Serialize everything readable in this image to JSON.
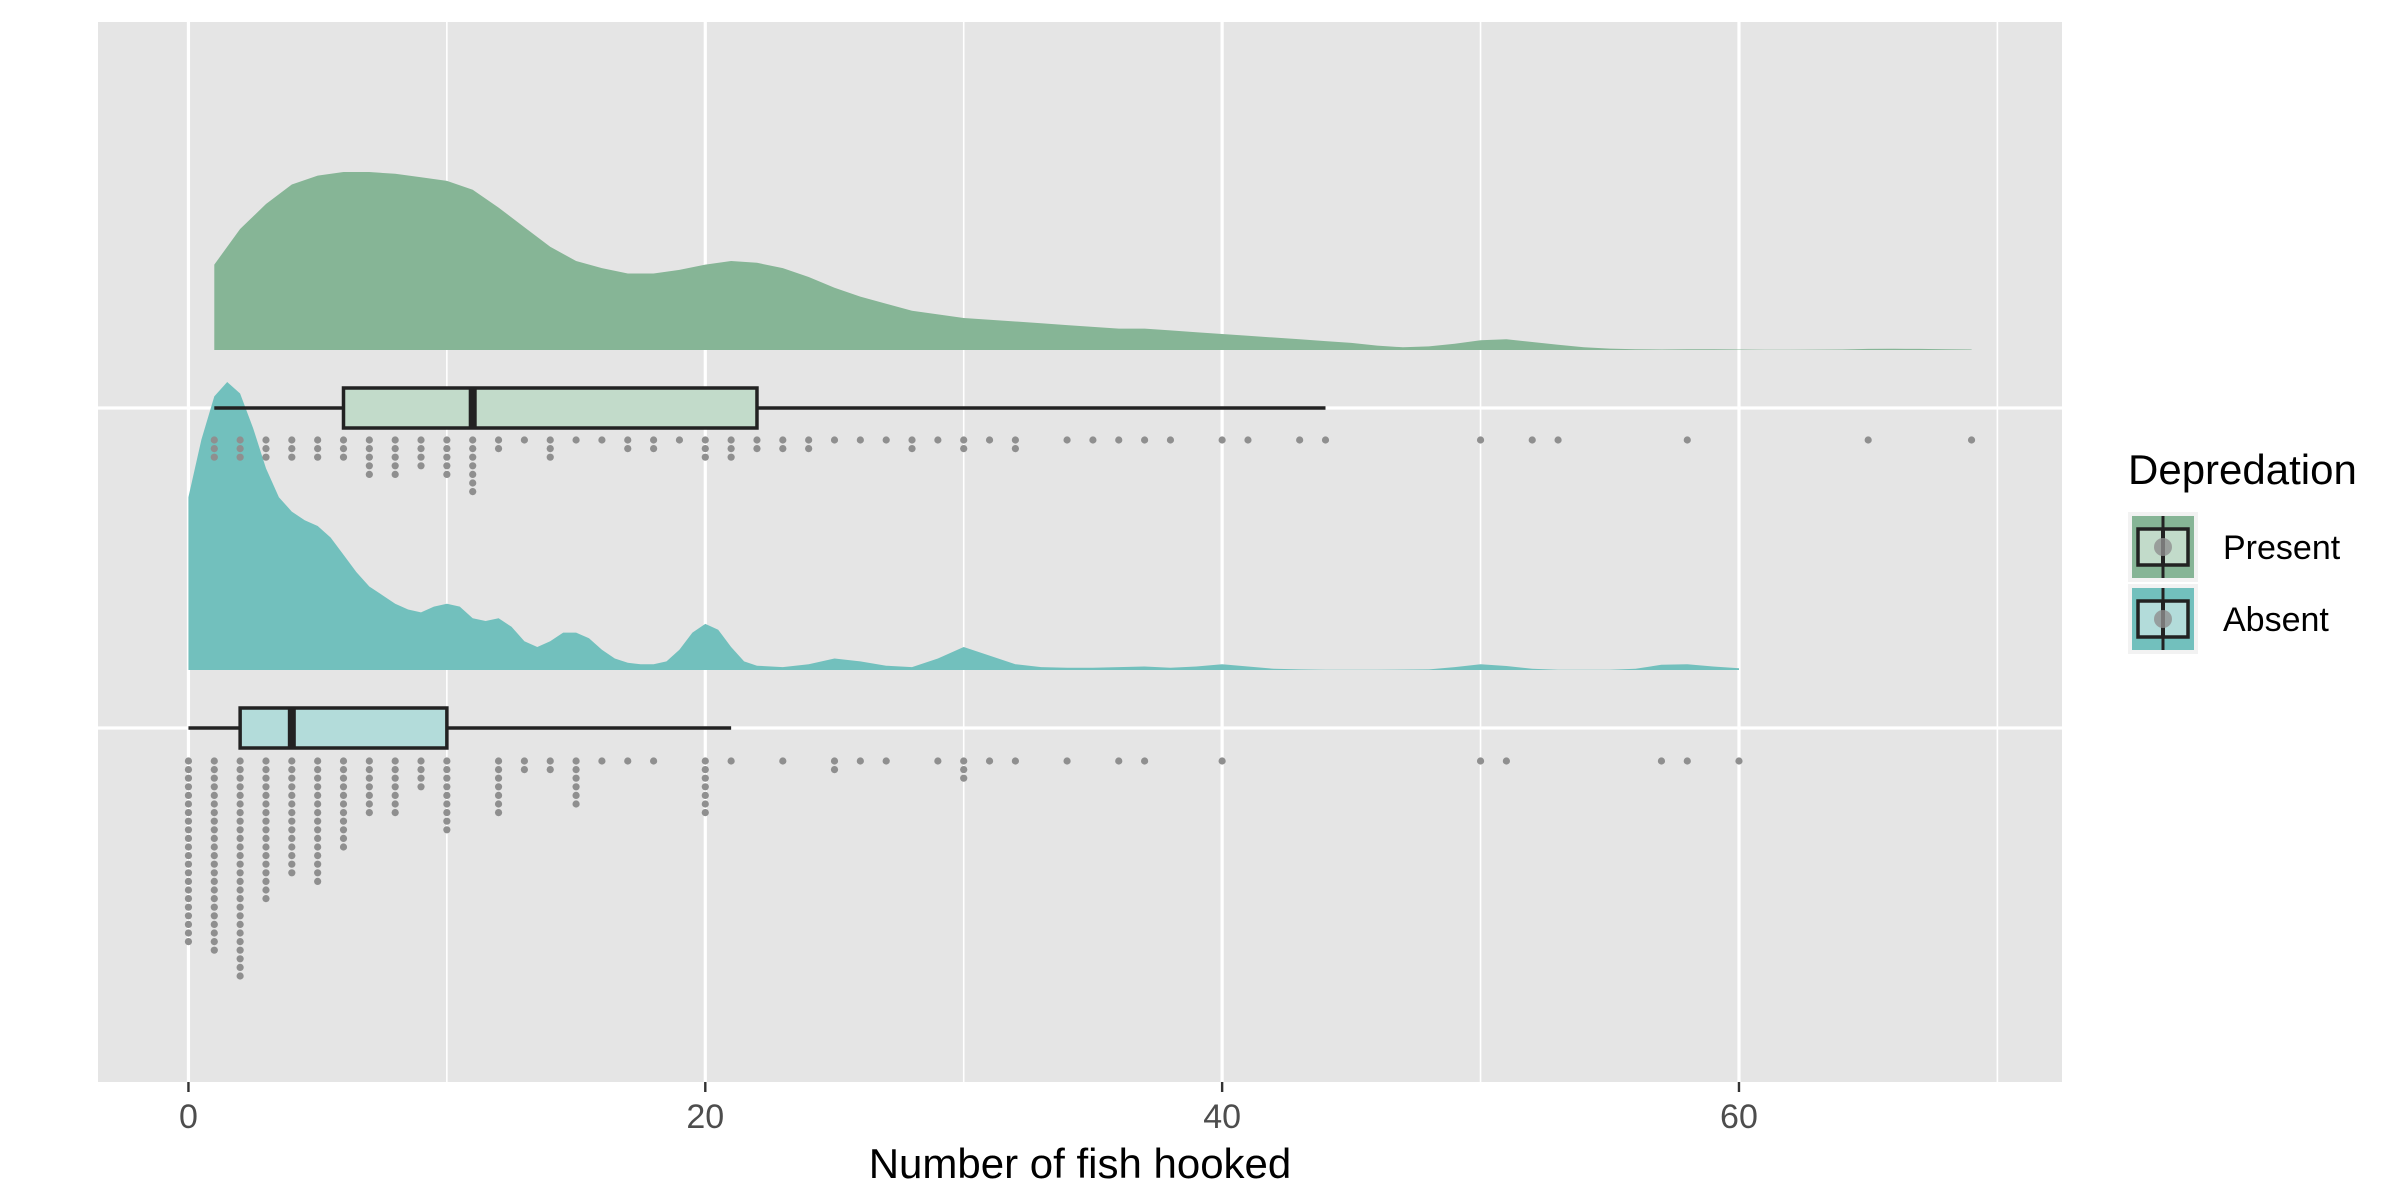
{
  "chart_data": {
    "type": "raincloud",
    "xlabel": "Number of fish hooked",
    "xlim": [
      -3.5,
      72.5
    ],
    "x_ticks": [
      0,
      20,
      40,
      60
    ],
    "x_minor": [
      10,
      30,
      50,
      70
    ],
    "grid": true,
    "legend": {
      "title": "Depredation",
      "position": "right"
    },
    "colors": {
      "panel": "#e5e5e5",
      "grid": "#ffffff",
      "dot": "#8f8f8f",
      "box_stroke": "#222222"
    },
    "series": [
      {
        "name": "Present",
        "color": "#86b596",
        "box_fill": "#c2dbca",
        "box": {
          "min": 1,
          "q1": 6,
          "median": 11,
          "q3": 22,
          "max": 44
        },
        "density": [
          [
            1,
            0.48
          ],
          [
            2,
            0.68
          ],
          [
            3,
            0.82
          ],
          [
            4,
            0.93
          ],
          [
            5,
            0.98
          ],
          [
            6,
            1.0
          ],
          [
            7,
            1.0
          ],
          [
            8,
            0.99
          ],
          [
            9,
            0.97
          ],
          [
            10,
            0.95
          ],
          [
            11,
            0.9
          ],
          [
            12,
            0.8
          ],
          [
            13,
            0.69
          ],
          [
            14,
            0.58
          ],
          [
            15,
            0.5
          ],
          [
            16,
            0.46
          ],
          [
            17,
            0.43
          ],
          [
            18,
            0.43
          ],
          [
            19,
            0.45
          ],
          [
            20,
            0.48
          ],
          [
            21,
            0.5
          ],
          [
            22,
            0.49
          ],
          [
            23,
            0.46
          ],
          [
            24,
            0.41
          ],
          [
            25,
            0.35
          ],
          [
            26,
            0.3
          ],
          [
            27,
            0.26
          ],
          [
            28,
            0.22
          ],
          [
            29,
            0.2
          ],
          [
            30,
            0.18
          ],
          [
            31,
            0.17
          ],
          [
            32,
            0.16
          ],
          [
            33,
            0.15
          ],
          [
            34,
            0.14
          ],
          [
            35,
            0.13
          ],
          [
            36,
            0.12
          ],
          [
            37,
            0.12
          ],
          [
            38,
            0.11
          ],
          [
            39,
            0.1
          ],
          [
            40,
            0.09
          ],
          [
            41,
            0.08
          ],
          [
            42,
            0.07
          ],
          [
            43,
            0.06
          ],
          [
            44,
            0.05
          ],
          [
            45,
            0.04
          ],
          [
            46,
            0.025
          ],
          [
            47,
            0.015
          ],
          [
            48,
            0.02
          ],
          [
            49,
            0.035
          ],
          [
            50,
            0.055
          ],
          [
            51,
            0.06
          ],
          [
            52,
            0.045
          ],
          [
            53,
            0.03
          ],
          [
            54,
            0.015
          ],
          [
            55,
            0.008
          ],
          [
            56,
            0.004
          ],
          [
            57,
            0.003
          ],
          [
            58,
            0.004
          ],
          [
            59,
            0.004
          ],
          [
            60,
            0.003
          ],
          [
            61,
            0.001
          ],
          [
            62,
            0.001
          ],
          [
            63,
            0.002
          ],
          [
            64,
            0.003
          ],
          [
            65,
            0.006
          ],
          [
            66,
            0.007
          ],
          [
            67,
            0.006
          ],
          [
            68,
            0.004
          ],
          [
            69,
            0.003
          ]
        ],
        "dots": [
          [
            1,
            3
          ],
          [
            2,
            3
          ],
          [
            3,
            3
          ],
          [
            4,
            3
          ],
          [
            5,
            3
          ],
          [
            6,
            3
          ],
          [
            7,
            5
          ],
          [
            8,
            5
          ],
          [
            9,
            4
          ],
          [
            10,
            5
          ],
          [
            11,
            7
          ],
          [
            12,
            2
          ],
          [
            13,
            1
          ],
          [
            14,
            3
          ],
          [
            15,
            1
          ],
          [
            16,
            1
          ],
          [
            17,
            2
          ],
          [
            18,
            2
          ],
          [
            19,
            1
          ],
          [
            20,
            3
          ],
          [
            21,
            3
          ],
          [
            22,
            2
          ],
          [
            23,
            2
          ],
          [
            24,
            2
          ],
          [
            25,
            1
          ],
          [
            26,
            1
          ],
          [
            27,
            1
          ],
          [
            28,
            2
          ],
          [
            29,
            1
          ],
          [
            30,
            2
          ],
          [
            31,
            1
          ],
          [
            32,
            2
          ],
          [
            34,
            1
          ],
          [
            35,
            1
          ],
          [
            36,
            1
          ],
          [
            37,
            1
          ],
          [
            38,
            1
          ],
          [
            40,
            1
          ],
          [
            41,
            1
          ],
          [
            43,
            1
          ],
          [
            44,
            1
          ],
          [
            50,
            1
          ],
          [
            52,
            1
          ],
          [
            53,
            1
          ],
          [
            58,
            1
          ],
          [
            65,
            1
          ],
          [
            69,
            1
          ]
        ]
      },
      {
        "name": "Absent",
        "color": "#72c0bd",
        "box_fill": "#b3dcda",
        "box": {
          "min": 0,
          "q1": 2,
          "median": 4,
          "q3": 10,
          "max": 21
        },
        "density": [
          [
            0,
            0.6
          ],
          [
            0.5,
            0.8
          ],
          [
            1,
            0.95
          ],
          [
            1.5,
            1.0
          ],
          [
            2,
            0.96
          ],
          [
            2.5,
            0.84
          ],
          [
            3,
            0.7
          ],
          [
            3.5,
            0.6
          ],
          [
            4,
            0.55
          ],
          [
            4.5,
            0.52
          ],
          [
            5,
            0.5
          ],
          [
            5.5,
            0.46
          ],
          [
            6,
            0.4
          ],
          [
            6.5,
            0.34
          ],
          [
            7,
            0.29
          ],
          [
            7.5,
            0.26
          ],
          [
            8,
            0.23
          ],
          [
            8.5,
            0.21
          ],
          [
            9,
            0.2
          ],
          [
            9.5,
            0.22
          ],
          [
            10,
            0.23
          ],
          [
            10.5,
            0.22
          ],
          [
            11,
            0.18
          ],
          [
            11.5,
            0.17
          ],
          [
            12,
            0.18
          ],
          [
            12.5,
            0.15
          ],
          [
            13,
            0.1
          ],
          [
            13.5,
            0.08
          ],
          [
            14,
            0.1
          ],
          [
            14.5,
            0.13
          ],
          [
            15,
            0.13
          ],
          [
            15.5,
            0.11
          ],
          [
            16,
            0.07
          ],
          [
            16.5,
            0.04
          ],
          [
            17,
            0.025
          ],
          [
            17.5,
            0.02
          ],
          [
            18,
            0.02
          ],
          [
            18.5,
            0.03
          ],
          [
            19,
            0.07
          ],
          [
            19.5,
            0.13
          ],
          [
            20,
            0.16
          ],
          [
            20.5,
            0.14
          ],
          [
            21,
            0.08
          ],
          [
            21.5,
            0.03
          ],
          [
            22,
            0.015
          ],
          [
            23,
            0.01
          ],
          [
            24,
            0.02
          ],
          [
            25,
            0.04
          ],
          [
            26,
            0.03
          ],
          [
            27,
            0.015
          ],
          [
            28,
            0.01
          ],
          [
            29,
            0.04
          ],
          [
            30,
            0.08
          ],
          [
            31,
            0.05
          ],
          [
            32,
            0.02
          ],
          [
            33,
            0.01
          ],
          [
            34,
            0.008
          ],
          [
            35,
            0.008
          ],
          [
            36,
            0.01
          ],
          [
            37,
            0.012
          ],
          [
            38,
            0.008
          ],
          [
            39,
            0.012
          ],
          [
            40,
            0.02
          ],
          [
            41,
            0.012
          ],
          [
            42,
            0.004
          ],
          [
            43,
            0.002
          ],
          [
            44,
            0.001
          ],
          [
            46,
            0.001
          ],
          [
            48,
            0.002
          ],
          [
            49,
            0.01
          ],
          [
            50,
            0.02
          ],
          [
            51,
            0.014
          ],
          [
            52,
            0.004
          ],
          [
            53,
            0.001
          ],
          [
            55,
            0.001
          ],
          [
            56,
            0.004
          ],
          [
            57,
            0.018
          ],
          [
            58,
            0.02
          ],
          [
            59,
            0.012
          ],
          [
            60,
            0.006
          ]
        ],
        "dots": [
          [
            0,
            22
          ],
          [
            1,
            23
          ],
          [
            2,
            26
          ],
          [
            3,
            17
          ],
          [
            4,
            14
          ],
          [
            5,
            15
          ],
          [
            6,
            11
          ],
          [
            7,
            7
          ],
          [
            8,
            7
          ],
          [
            9,
            4
          ],
          [
            10,
            9
          ],
          [
            12,
            7
          ],
          [
            13,
            2
          ],
          [
            14,
            2
          ],
          [
            15,
            6
          ],
          [
            16,
            1
          ],
          [
            17,
            1
          ],
          [
            18,
            1
          ],
          [
            20,
            7
          ],
          [
            21,
            1
          ],
          [
            23,
            1
          ],
          [
            25,
            2
          ],
          [
            26,
            1
          ],
          [
            27,
            1
          ],
          [
            29,
            1
          ],
          [
            30,
            3
          ],
          [
            31,
            1
          ],
          [
            32,
            1
          ],
          [
            34,
            1
          ],
          [
            36,
            1
          ],
          [
            37,
            1
          ],
          [
            40,
            1
          ],
          [
            50,
            1
          ],
          [
            51,
            1
          ],
          [
            57,
            1
          ],
          [
            58,
            1
          ],
          [
            60,
            1
          ]
        ]
      }
    ]
  }
}
